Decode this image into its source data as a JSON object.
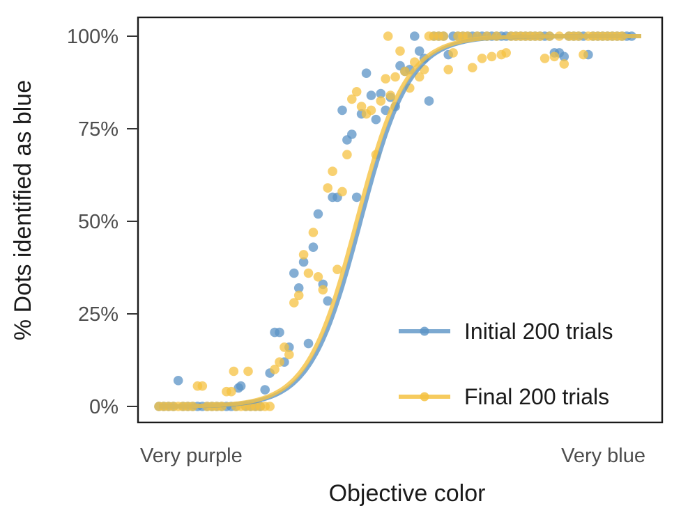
{
  "chart_data": {
    "type": "scatter",
    "title": "",
    "xlabel": "Objective color",
    "ylabel": "% Dots identified as blue",
    "x_tick_labels": [
      "Very purple",
      "Very blue"
    ],
    "xlim": [
      0,
      1
    ],
    "ylim": [
      0,
      1
    ],
    "y_ticks": [
      0,
      0.25,
      0.5,
      0.75,
      1.0
    ],
    "y_tick_labels": [
      "0%",
      "25%",
      "50%",
      "75%",
      "100%"
    ],
    "grid": false,
    "legend_position": "bottom-right",
    "series": [
      {
        "name": "Initial 200 trials",
        "label": "Initial 200 trials",
        "color": "#5b93c6",
        "fit": {
          "midpoint": 0.418,
          "slope": 19.5
        },
        "points": [
          [
            0.0,
            0
          ],
          [
            0.01,
            0
          ],
          [
            0.02,
            0
          ],
          [
            0.03,
            0
          ],
          [
            0.04,
            0.07
          ],
          [
            0.05,
            0
          ],
          [
            0.06,
            0
          ],
          [
            0.07,
            0
          ],
          [
            0.08,
            0
          ],
          [
            0.09,
            0
          ],
          [
            0.1,
            0
          ],
          [
            0.11,
            0
          ],
          [
            0.12,
            0
          ],
          [
            0.13,
            0
          ],
          [
            0.14,
            0
          ],
          [
            0.15,
            0
          ],
          [
            0.16,
            0
          ],
          [
            0.165,
            0.05
          ],
          [
            0.17,
            0.055
          ],
          [
            0.18,
            0
          ],
          [
            0.19,
            0
          ],
          [
            0.2,
            0
          ],
          [
            0.21,
            0
          ],
          [
            0.22,
            0.045
          ],
          [
            0.23,
            0.09
          ],
          [
            0.24,
            0.2
          ],
          [
            0.25,
            0.2
          ],
          [
            0.26,
            0.12
          ],
          [
            0.27,
            0.16
          ],
          [
            0.28,
            0.36
          ],
          [
            0.29,
            0.32
          ],
          [
            0.3,
            0.39
          ],
          [
            0.31,
            0.17
          ],
          [
            0.32,
            0.43
          ],
          [
            0.33,
            0.52
          ],
          [
            0.34,
            0.33
          ],
          [
            0.35,
            0.285
          ],
          [
            0.36,
            0.565
          ],
          [
            0.37,
            0.565
          ],
          [
            0.38,
            0.8
          ],
          [
            0.39,
            0.72
          ],
          [
            0.4,
            0.735
          ],
          [
            0.41,
            0.565
          ],
          [
            0.42,
            0.79
          ],
          [
            0.43,
            0.9
          ],
          [
            0.44,
            0.84
          ],
          [
            0.45,
            0.775
          ],
          [
            0.46,
            0.845
          ],
          [
            0.47,
            0.8
          ],
          [
            0.48,
            0.835
          ],
          [
            0.49,
            0.81
          ],
          [
            0.5,
            0.92
          ],
          [
            0.51,
            0.905
          ],
          [
            0.52,
            0.91
          ],
          [
            0.53,
            1.0
          ],
          [
            0.54,
            0.96
          ],
          [
            0.55,
            0.94
          ],
          [
            0.56,
            0.825
          ],
          [
            0.57,
            1.0
          ],
          [
            0.58,
            1.0
          ],
          [
            0.59,
            1.0
          ],
          [
            0.6,
            0.95
          ],
          [
            0.61,
            1.0
          ],
          [
            0.62,
            1.0
          ],
          [
            0.63,
            1.0
          ],
          [
            0.64,
            1.0
          ],
          [
            0.65,
            1.0
          ],
          [
            0.66,
            1.0
          ],
          [
            0.67,
            1.0
          ],
          [
            0.68,
            1.0
          ],
          [
            0.69,
            1.0
          ],
          [
            0.7,
            1.0
          ],
          [
            0.71,
            1.0
          ],
          [
            0.72,
            1.0
          ],
          [
            0.73,
            1.0
          ],
          [
            0.74,
            1.0
          ],
          [
            0.75,
            1.0
          ],
          [
            0.76,
            1.0
          ],
          [
            0.77,
            1.0
          ],
          [
            0.78,
            1.0
          ],
          [
            0.79,
            1.0
          ],
          [
            0.8,
            1.0
          ],
          [
            0.81,
            1.0
          ],
          [
            0.82,
            0.955
          ],
          [
            0.83,
            0.955
          ],
          [
            0.84,
            0.945
          ],
          [
            0.85,
            1.0
          ],
          [
            0.86,
            1.0
          ],
          [
            0.87,
            1.0
          ],
          [
            0.88,
            1.0
          ],
          [
            0.89,
            0.95
          ],
          [
            0.9,
            1.0
          ],
          [
            0.91,
            1.0
          ],
          [
            0.92,
            1.0
          ],
          [
            0.93,
            1.0
          ],
          [
            0.94,
            1.0
          ],
          [
            0.95,
            1.0
          ],
          [
            0.96,
            1.0
          ],
          [
            0.97,
            1.0
          ],
          [
            0.98,
            1.0
          ]
        ]
      },
      {
        "name": "Final 200 trials",
        "label": "Final 200 trials",
        "color": "#f5c242",
        "fit": {
          "midpoint": 0.41,
          "slope": 19.5
        },
        "points": [
          [
            0.0,
            0
          ],
          [
            0.01,
            0
          ],
          [
            0.02,
            0
          ],
          [
            0.03,
            0
          ],
          [
            0.04,
            0
          ],
          [
            0.05,
            0
          ],
          [
            0.06,
            0
          ],
          [
            0.07,
            0
          ],
          [
            0.08,
            0.055
          ],
          [
            0.09,
            0.055
          ],
          [
            0.1,
            0
          ],
          [
            0.11,
            0
          ],
          [
            0.12,
            0
          ],
          [
            0.13,
            0
          ],
          [
            0.14,
            0.04
          ],
          [
            0.15,
            0.04
          ],
          [
            0.155,
            0.095
          ],
          [
            0.16,
            0
          ],
          [
            0.17,
            0
          ],
          [
            0.18,
            0
          ],
          [
            0.185,
            0.095
          ],
          [
            0.19,
            0
          ],
          [
            0.2,
            0
          ],
          [
            0.21,
            0
          ],
          [
            0.22,
            0
          ],
          [
            0.23,
            0
          ],
          [
            0.24,
            0.1
          ],
          [
            0.25,
            0.12
          ],
          [
            0.26,
            0.16
          ],
          [
            0.27,
            0.14
          ],
          [
            0.28,
            0.28
          ],
          [
            0.29,
            0.3
          ],
          [
            0.3,
            0.41
          ],
          [
            0.31,
            0.36
          ],
          [
            0.32,
            0.47
          ],
          [
            0.33,
            0.35
          ],
          [
            0.34,
            0.315
          ],
          [
            0.35,
            0.59
          ],
          [
            0.36,
            0.635
          ],
          [
            0.37,
            0.37
          ],
          [
            0.38,
            0.58
          ],
          [
            0.39,
            0.68
          ],
          [
            0.4,
            0.83
          ],
          [
            0.41,
            0.85
          ],
          [
            0.42,
            0.81
          ],
          [
            0.43,
            0.79
          ],
          [
            0.44,
            0.8
          ],
          [
            0.45,
            0.68
          ],
          [
            0.46,
            0.825
          ],
          [
            0.47,
            0.885
          ],
          [
            0.475,
            1.0
          ],
          [
            0.48,
            0.84
          ],
          [
            0.49,
            0.89
          ],
          [
            0.5,
            0.96
          ],
          [
            0.51,
            0.905
          ],
          [
            0.52,
            0.86
          ],
          [
            0.53,
            0.93
          ],
          [
            0.54,
            0.89
          ],
          [
            0.55,
            0.91
          ],
          [
            0.56,
            1.0
          ],
          [
            0.57,
            1.0
          ],
          [
            0.58,
            1.0
          ],
          [
            0.59,
            1.0
          ],
          [
            0.6,
            0.91
          ],
          [
            0.61,
            0.955
          ],
          [
            0.62,
            1.0
          ],
          [
            0.63,
            1.0
          ],
          [
            0.64,
            1.0
          ],
          [
            0.65,
            0.915
          ],
          [
            0.66,
            1.0
          ],
          [
            0.67,
            0.94
          ],
          [
            0.68,
            1.0
          ],
          [
            0.69,
            0.945
          ],
          [
            0.7,
            1.0
          ],
          [
            0.71,
            0.95
          ],
          [
            0.72,
            0.955
          ],
          [
            0.73,
            1.0
          ],
          [
            0.74,
            1.0
          ],
          [
            0.75,
            1.0
          ],
          [
            0.76,
            1.0
          ],
          [
            0.77,
            1.0
          ],
          [
            0.78,
            1.0
          ],
          [
            0.79,
            1.0
          ],
          [
            0.8,
            0.94
          ],
          [
            0.81,
            1.0
          ],
          [
            0.82,
            0.945
          ],
          [
            0.83,
            1.0
          ],
          [
            0.84,
            0.925
          ],
          [
            0.85,
            1.0
          ],
          [
            0.86,
            1.0
          ],
          [
            0.87,
            1.0
          ],
          [
            0.88,
            0.95
          ],
          [
            0.89,
            1.0
          ],
          [
            0.9,
            1.0
          ],
          [
            0.91,
            1.0
          ],
          [
            0.92,
            1.0
          ],
          [
            0.93,
            1.0
          ],
          [
            0.94,
            1.0
          ],
          [
            0.95,
            1.0
          ],
          [
            0.96,
            1.0
          ]
        ]
      }
    ]
  }
}
